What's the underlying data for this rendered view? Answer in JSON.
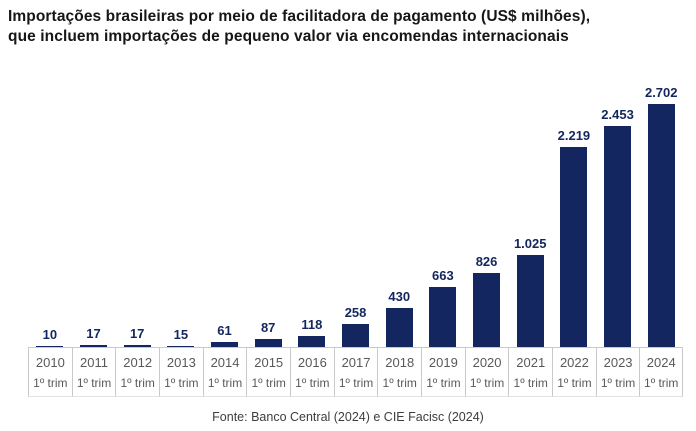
{
  "title": {
    "line1": "Importações brasileiras por meio de facilitadora de pagamento (US$ milhões),",
    "line2": "que incluem importações de pequeno valor via encomendas internacionais"
  },
  "source": "Fonte: Banco Central (2024) e CIE Facisc (2024)",
  "colors": {
    "bar": "#13265f",
    "value_label": "#13265f",
    "axis_label": "#595959",
    "axis_border": "#c9c9c9",
    "title": "#161616",
    "source": "#3d3d3d"
  },
  "chart_data": {
    "type": "bar",
    "title": "Importações brasileiras por meio de facilitadora de pagamento (US$ milhões), que incluem importações de pequeno valor via encomendas internacionais",
    "categories": [
      "2010",
      "2011",
      "2012",
      "2013",
      "2014",
      "2015",
      "2016",
      "2017",
      "2018",
      "2019",
      "2020",
      "2021",
      "2022",
      "2023",
      "2024"
    ],
    "category_sub_label": "1º trim",
    "values": [
      10,
      17,
      17,
      15,
      61,
      87,
      118,
      258,
      430,
      663,
      826,
      1025,
      2219,
      2453,
      2702
    ],
    "value_labels": [
      "10",
      "17",
      "17",
      "15",
      "61",
      "87",
      "118",
      "258",
      "430",
      "663",
      "826",
      "1.025",
      "2.219",
      "2.453",
      "2.702"
    ],
    "xlabel": "",
    "ylabel": "",
    "ylim": [
      0,
      2702
    ],
    "grid": false,
    "legend": false,
    "y_axis_visible": false,
    "data_labels": "above bars"
  }
}
